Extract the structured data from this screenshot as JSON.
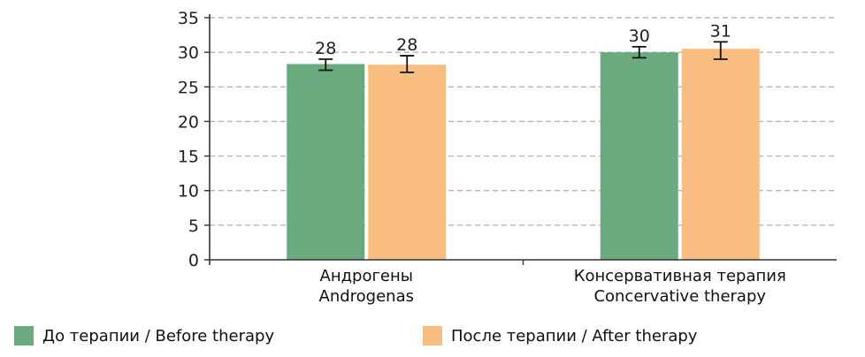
{
  "chart_data": {
    "type": "bar",
    "categories": [
      [
        "Андрогены",
        "Androgenas"
      ],
      [
        "Консервативная терапия",
        "Concervative therapy"
      ]
    ],
    "series": [
      {
        "name": "До терапии / Before therapy",
        "color": "#6aaa7e",
        "values": [
          28.3,
          30.0
        ],
        "labels": [
          "28",
          "30"
        ],
        "error_low": [
          27.4,
          29.2
        ],
        "error_high": [
          29.0,
          30.8
        ]
      },
      {
        "name": "После терапии / After therapy",
        "color": "#f9bd7f",
        "values": [
          28.2,
          30.5
        ],
        "labels": [
          "28",
          "31"
        ],
        "error_low": [
          27.1,
          29.0
        ],
        "error_high": [
          29.5,
          31.5
        ]
      }
    ],
    "ylim": [
      0,
      35
    ],
    "yticks": [
      "0",
      "5",
      "10",
      "15",
      "20",
      "25",
      "30",
      "35"
    ],
    "grid": true,
    "legend_position": "bottom"
  }
}
